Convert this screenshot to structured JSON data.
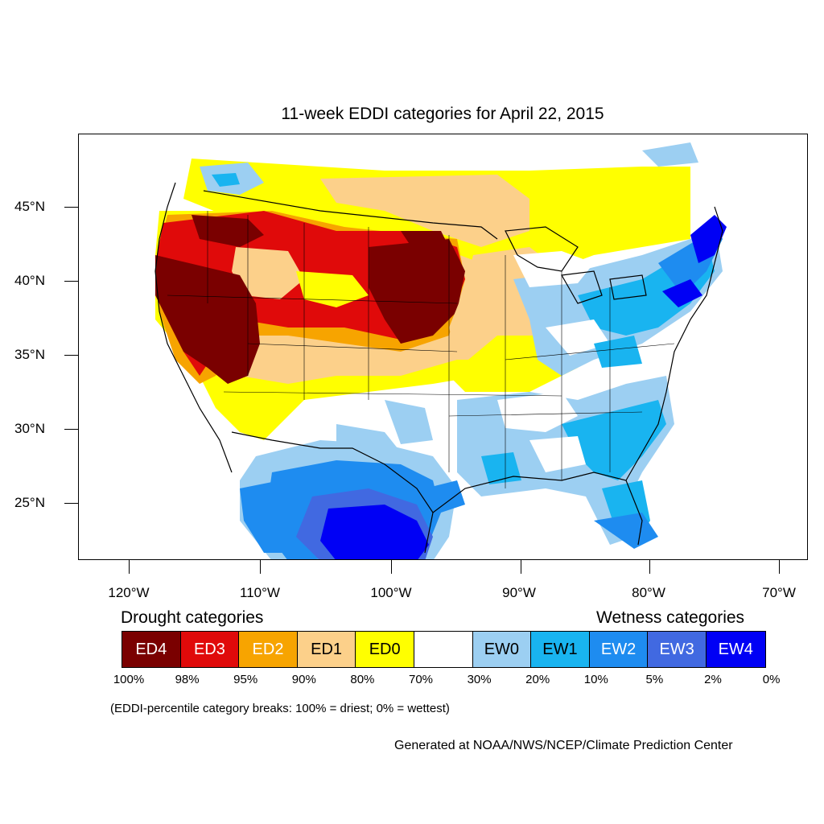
{
  "title": "11-week EDDI categories for April 22, 2015",
  "lat_labels": [
    "45°N",
    "40°N",
    "35°N",
    "30°N",
    "25°N"
  ],
  "lon_labels": [
    "120°W",
    "110°W",
    "100°W",
    "90°W",
    "80°W",
    "70°W"
  ],
  "legend": {
    "drought_heading": "Drought categories",
    "wetness_heading": "Wetness categories",
    "categories": [
      {
        "label": "ED4",
        "color": "#7a0000",
        "text_color": "#ffffff"
      },
      {
        "label": "ED3",
        "color": "#e00a0a",
        "text_color": "#ffffff"
      },
      {
        "label": "ED2",
        "color": "#f7a400",
        "text_color": "#ffffff"
      },
      {
        "label": "ED1",
        "color": "#fcd08a",
        "text_color": "#000000"
      },
      {
        "label": "ED0",
        "color": "#ffff00",
        "text_color": "#000000"
      },
      {
        "label": "",
        "color": "#ffffff",
        "text_color": "#000000"
      },
      {
        "label": "EW0",
        "color": "#9ccff2",
        "text_color": "#000000"
      },
      {
        "label": "EW1",
        "color": "#19b4f0",
        "text_color": "#000000"
      },
      {
        "label": "EW2",
        "color": "#1e8cf0",
        "text_color": "#ffffff"
      },
      {
        "label": "EW3",
        "color": "#4169e1",
        "text_color": "#ffffff"
      },
      {
        "label": "EW4",
        "color": "#0000f5",
        "text_color": "#ffffff"
      }
    ],
    "breaks": [
      "100%",
      "98%",
      "95%",
      "90%",
      "80%",
      "70%",
      "30%",
      "20%",
      "10%",
      "5%",
      "2%",
      "0%"
    ]
  },
  "note": "(EDDI-percentile category breaks: 100% = driest; 0% = wettest)",
  "credit": "Generated at NOAA/NWS/NCEP/Climate Prediction Center"
}
